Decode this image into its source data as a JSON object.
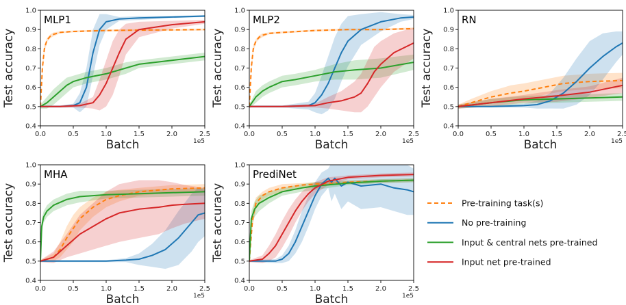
{
  "chart_data": [
    {
      "type": "line",
      "title": "MLP1",
      "xlabel": "Batch",
      "ylabel": "Test accuracy",
      "x_exponent_label": "1e5",
      "xlim": [
        0,
        2.5
      ],
      "ylim": [
        0.4,
        1.0
      ],
      "xticks": [
        "0.0",
        "0.5",
        "1.0",
        "1.5",
        "2.0",
        "2.5"
      ],
      "yticks": [
        "0.4",
        "0.5",
        "0.6",
        "0.7",
        "0.8",
        "0.9",
        "1.0"
      ],
      "series": [
        {
          "key": "pretrain",
          "x": [
            0,
            0.03,
            0.06,
            0.1,
            0.15,
            0.2,
            0.3,
            0.5,
            1.0,
            1.5,
            2.0,
            2.5
          ],
          "y": [
            0.5,
            0.7,
            0.8,
            0.845,
            0.865,
            0.875,
            0.885,
            0.89,
            0.895,
            0.897,
            0.898,
            0.9
          ],
          "band": [
            0.01,
            0.02,
            0.02,
            0.01,
            0.01,
            0.01,
            0.005,
            0.005,
            0.005,
            0.005,
            0.005,
            0.005
          ]
        },
        {
          "key": "none",
          "x": [
            0,
            0.3,
            0.5,
            0.6,
            0.7,
            0.8,
            0.9,
            1.0,
            1.2,
            1.5,
            2.0,
            2.5
          ],
          "y": [
            0.5,
            0.5,
            0.505,
            0.52,
            0.6,
            0.78,
            0.9,
            0.94,
            0.955,
            0.96,
            0.965,
            0.97
          ],
          "band": [
            0.005,
            0.005,
            0.01,
            0.05,
            0.1,
            0.12,
            0.08,
            0.04,
            0.01,
            0.01,
            0.005,
            0.005
          ]
        },
        {
          "key": "central",
          "x": [
            0,
            0.1,
            0.2,
            0.3,
            0.4,
            0.5,
            0.7,
            1.0,
            1.3,
            1.5,
            2.0,
            2.5
          ],
          "y": [
            0.5,
            0.52,
            0.55,
            0.58,
            0.61,
            0.63,
            0.65,
            0.67,
            0.7,
            0.72,
            0.74,
            0.76
          ],
          "band": [
            0.01,
            0.03,
            0.04,
            0.04,
            0.04,
            0.03,
            0.03,
            0.03,
            0.03,
            0.02,
            0.02,
            0.02
          ]
        },
        {
          "key": "input",
          "x": [
            0,
            0.3,
            0.6,
            0.8,
            0.9,
            1.0,
            1.1,
            1.2,
            1.3,
            1.5,
            2.0,
            2.5
          ],
          "y": [
            0.5,
            0.5,
            0.505,
            0.52,
            0.56,
            0.62,
            0.7,
            0.78,
            0.85,
            0.9,
            0.925,
            0.94
          ],
          "band": [
            0.005,
            0.005,
            0.01,
            0.03,
            0.08,
            0.12,
            0.14,
            0.12,
            0.08,
            0.04,
            0.02,
            0.01
          ]
        }
      ]
    },
    {
      "type": "line",
      "title": "MLP2",
      "xlabel": "Batch",
      "ylabel": "Test accuracy",
      "x_exponent_label": "1e5",
      "xlim": [
        0,
        2.5
      ],
      "ylim": [
        0.4,
        1.0
      ],
      "xticks": [
        "0.0",
        "0.5",
        "1.0",
        "1.5",
        "2.0",
        "2.5"
      ],
      "yticks": [
        "0.4",
        "0.5",
        "0.6",
        "0.7",
        "0.8",
        "0.9",
        "1.0"
      ],
      "series": [
        {
          "key": "pretrain",
          "x": [
            0,
            0.03,
            0.06,
            0.1,
            0.15,
            0.2,
            0.3,
            0.5,
            1.0,
            1.5,
            2.0,
            2.5
          ],
          "y": [
            0.5,
            0.7,
            0.8,
            0.84,
            0.86,
            0.87,
            0.88,
            0.885,
            0.895,
            0.9,
            0.9,
            0.905
          ],
          "band": [
            0.01,
            0.02,
            0.02,
            0.01,
            0.01,
            0.01,
            0.005,
            0.005,
            0.005,
            0.005,
            0.005,
            0.005
          ]
        },
        {
          "key": "none",
          "x": [
            0,
            0.5,
            0.9,
            1.0,
            1.1,
            1.2,
            1.3,
            1.4,
            1.5,
            1.7,
            2.0,
            2.3,
            2.5
          ],
          "y": [
            0.5,
            0.5,
            0.505,
            0.52,
            0.56,
            0.62,
            0.7,
            0.78,
            0.84,
            0.9,
            0.94,
            0.96,
            0.965
          ],
          "band": [
            0.005,
            0.005,
            0.02,
            0.05,
            0.1,
            0.14,
            0.16,
            0.15,
            0.13,
            0.08,
            0.05,
            0.02,
            0.01
          ]
        },
        {
          "key": "central",
          "x": [
            0,
            0.1,
            0.2,
            0.3,
            0.5,
            0.7,
            1.0,
            1.3,
            1.6,
            2.0,
            2.5
          ],
          "y": [
            0.5,
            0.55,
            0.58,
            0.6,
            0.63,
            0.64,
            0.66,
            0.68,
            0.69,
            0.7,
            0.73
          ],
          "band": [
            0.01,
            0.03,
            0.03,
            0.03,
            0.03,
            0.03,
            0.03,
            0.04,
            0.05,
            0.05,
            0.04
          ]
        },
        {
          "key": "input",
          "x": [
            0,
            0.5,
            1.0,
            1.2,
            1.4,
            1.6,
            1.7,
            1.8,
            1.9,
            2.0,
            2.2,
            2.5
          ],
          "y": [
            0.5,
            0.5,
            0.505,
            0.52,
            0.53,
            0.55,
            0.57,
            0.62,
            0.68,
            0.72,
            0.78,
            0.83
          ],
          "band": [
            0.005,
            0.005,
            0.01,
            0.03,
            0.05,
            0.08,
            0.1,
            0.12,
            0.13,
            0.12,
            0.1,
            0.08
          ]
        }
      ]
    },
    {
      "type": "line",
      "title": "RN",
      "xlabel": "Batch",
      "ylabel": "Test accuracy",
      "x_exponent_label": "1e5",
      "xlim": [
        0,
        2.5
      ],
      "ylim": [
        0.4,
        1.0
      ],
      "xticks": [
        "0.0",
        "0.5",
        "1.0",
        "1.5",
        "2.0",
        "2.5"
      ],
      "yticks": [
        "0.4",
        "0.5",
        "0.6",
        "0.7",
        "0.8",
        "0.9",
        "1.0"
      ],
      "series": [
        {
          "key": "pretrain",
          "x": [
            0,
            0.2,
            0.5,
            0.8,
            1.0,
            1.3,
            1.6,
            2.0,
            2.5
          ],
          "y": [
            0.5,
            0.52,
            0.55,
            0.57,
            0.58,
            0.6,
            0.62,
            0.63,
            0.635
          ],
          "band": [
            0.01,
            0.02,
            0.03,
            0.04,
            0.04,
            0.04,
            0.04,
            0.04,
            0.04
          ]
        },
        {
          "key": "none",
          "x": [
            0,
            0.5,
            1.0,
            1.2,
            1.4,
            1.6,
            1.8,
            2.0,
            2.2,
            2.4,
            2.5
          ],
          "y": [
            0.5,
            0.5,
            0.505,
            0.51,
            0.53,
            0.57,
            0.63,
            0.7,
            0.76,
            0.81,
            0.83
          ],
          "band": [
            0.005,
            0.005,
            0.01,
            0.02,
            0.04,
            0.08,
            0.12,
            0.14,
            0.12,
            0.08,
            0.06
          ]
        },
        {
          "key": "central",
          "x": [
            0,
            0.5,
            1.0,
            1.5,
            2.0,
            2.5
          ],
          "y": [
            0.5,
            0.52,
            0.535,
            0.54,
            0.545,
            0.55
          ],
          "band": [
            0.01,
            0.02,
            0.02,
            0.02,
            0.02,
            0.02
          ]
        },
        {
          "key": "input",
          "x": [
            0,
            0.5,
            1.0,
            1.5,
            2.0,
            2.5
          ],
          "y": [
            0.5,
            0.52,
            0.54,
            0.555,
            0.575,
            0.61
          ],
          "band": [
            0.01,
            0.02,
            0.02,
            0.03,
            0.03,
            0.04
          ]
        }
      ]
    },
    {
      "type": "line",
      "title": "MHA",
      "xlabel": "Batch",
      "ylabel": "Test accuracy",
      "x_exponent_label": "1e5",
      "xlim": [
        0,
        2.5
      ],
      "ylim": [
        0.4,
        1.0
      ],
      "xticks": [
        "0.0",
        "0.5",
        "1.0",
        "1.5",
        "2.0",
        "2.5"
      ],
      "yticks": [
        "0.4",
        "0.5",
        "0.6",
        "0.7",
        "0.8",
        "0.9",
        "1.0"
      ],
      "series": [
        {
          "key": "pretrain",
          "x": [
            0,
            0.2,
            0.3,
            0.4,
            0.5,
            0.6,
            0.8,
            1.0,
            1.2,
            1.5,
            2.0,
            2.5
          ],
          "y": [
            0.5,
            0.52,
            0.56,
            0.62,
            0.67,
            0.72,
            0.78,
            0.82,
            0.84,
            0.86,
            0.875,
            0.88
          ],
          "band": [
            0.005,
            0.02,
            0.04,
            0.06,
            0.07,
            0.06,
            0.05,
            0.04,
            0.03,
            0.02,
            0.02,
            0.02
          ]
        },
        {
          "key": "none",
          "x": [
            0,
            0.5,
            1.0,
            1.3,
            1.5,
            1.7,
            1.9,
            2.1,
            2.3,
            2.4,
            2.5
          ],
          "y": [
            0.5,
            0.5,
            0.5,
            0.505,
            0.51,
            0.53,
            0.56,
            0.62,
            0.7,
            0.74,
            0.75
          ],
          "band": [
            0.005,
            0.005,
            0.005,
            0.01,
            0.03,
            0.06,
            0.1,
            0.14,
            0.15,
            0.14,
            0.12
          ]
        },
        {
          "key": "central",
          "x": [
            0,
            0.02,
            0.05,
            0.1,
            0.2,
            0.4,
            0.6,
            1.0,
            1.5,
            2.0,
            2.5
          ],
          "y": [
            0.5,
            0.68,
            0.73,
            0.76,
            0.79,
            0.82,
            0.835,
            0.845,
            0.85,
            0.855,
            0.86
          ],
          "band": [
            0.01,
            0.04,
            0.03,
            0.03,
            0.03,
            0.03,
            0.03,
            0.02,
            0.02,
            0.02,
            0.02
          ]
        },
        {
          "key": "input",
          "x": [
            0,
            0.2,
            0.4,
            0.6,
            0.8,
            1.0,
            1.2,
            1.5,
            1.8,
            2.0,
            2.2,
            2.5
          ],
          "y": [
            0.5,
            0.52,
            0.58,
            0.64,
            0.68,
            0.72,
            0.75,
            0.77,
            0.78,
            0.79,
            0.795,
            0.8
          ],
          "band": [
            0.005,
            0.03,
            0.06,
            0.1,
            0.12,
            0.14,
            0.15,
            0.15,
            0.14,
            0.12,
            0.1,
            0.08
          ]
        }
      ]
    },
    {
      "type": "line",
      "title": "PrediNet",
      "xlabel": "Batch",
      "ylabel": "Test accuracy",
      "x_exponent_label": "1e5",
      "xlim": [
        0,
        2.5
      ],
      "ylim": [
        0.4,
        1.0
      ],
      "xticks": [
        "0.0",
        "0.5",
        "1.0",
        "1.5",
        "2.0",
        "2.5"
      ],
      "yticks": [
        "0.4",
        "0.5",
        "0.6",
        "0.7",
        "0.8",
        "0.9",
        "1.0"
      ],
      "series": [
        {
          "key": "pretrain",
          "x": [
            0,
            0.05,
            0.1,
            0.2,
            0.3,
            0.5,
            0.8,
            1.0,
            1.5,
            2.0,
            2.5
          ],
          "y": [
            0.5,
            0.72,
            0.8,
            0.84,
            0.86,
            0.88,
            0.895,
            0.9,
            0.91,
            0.915,
            0.92
          ],
          "band": [
            0.01,
            0.04,
            0.03,
            0.02,
            0.02,
            0.02,
            0.01,
            0.01,
            0.01,
            0.01,
            0.01
          ]
        },
        {
          "key": "none",
          "x": [
            0,
            0.4,
            0.5,
            0.6,
            0.7,
            0.8,
            0.9,
            1.0,
            1.1,
            1.2,
            1.25,
            1.3,
            1.4,
            1.5,
            1.7,
            2.0,
            2.2,
            2.4,
            2.5
          ],
          "y": [
            0.5,
            0.5,
            0.51,
            0.54,
            0.6,
            0.68,
            0.76,
            0.84,
            0.9,
            0.93,
            0.91,
            0.93,
            0.89,
            0.91,
            0.89,
            0.9,
            0.88,
            0.87,
            0.86
          ],
          "band": [
            0.005,
            0.01,
            0.02,
            0.04,
            0.06,
            0.08,
            0.08,
            0.07,
            0.06,
            0.05,
            0.1,
            0.08,
            0.12,
            0.1,
            0.12,
            0.12,
            0.12,
            0.13,
            0.12
          ]
        },
        {
          "key": "central",
          "x": [
            0,
            0.03,
            0.08,
            0.15,
            0.3,
            0.5,
            0.8,
            1.0,
            1.5,
            2.0,
            2.5
          ],
          "y": [
            0.5,
            0.72,
            0.77,
            0.8,
            0.83,
            0.86,
            0.88,
            0.89,
            0.905,
            0.915,
            0.92
          ],
          "band": [
            0.01,
            0.04,
            0.04,
            0.04,
            0.03,
            0.02,
            0.02,
            0.02,
            0.01,
            0.01,
            0.01
          ]
        },
        {
          "key": "input",
          "x": [
            0,
            0.2,
            0.3,
            0.4,
            0.5,
            0.6,
            0.7,
            0.8,
            0.9,
            1.0,
            1.2,
            1.5,
            2.0,
            2.5
          ],
          "y": [
            0.5,
            0.51,
            0.54,
            0.58,
            0.64,
            0.7,
            0.76,
            0.81,
            0.85,
            0.88,
            0.915,
            0.935,
            0.945,
            0.95
          ],
          "band": [
            0.005,
            0.02,
            0.04,
            0.06,
            0.07,
            0.07,
            0.06,
            0.05,
            0.04,
            0.03,
            0.02,
            0.01,
            0.01,
            0.01
          ]
        }
      ]
    }
  ],
  "legend": {
    "placement": "right",
    "items": [
      {
        "key": "pretrain",
        "label": "Pre-training task(s)",
        "color": "#ff7f0e",
        "dashed": true
      },
      {
        "key": "none",
        "label": "No pre-training",
        "color": "#1f77b4",
        "dashed": false
      },
      {
        "key": "central",
        "label": "Input & central nets pre-trained",
        "color": "#2ca02c",
        "dashed": false
      },
      {
        "key": "input",
        "label": "Input net pre-trained",
        "color": "#d62728",
        "dashed": false
      }
    ]
  }
}
